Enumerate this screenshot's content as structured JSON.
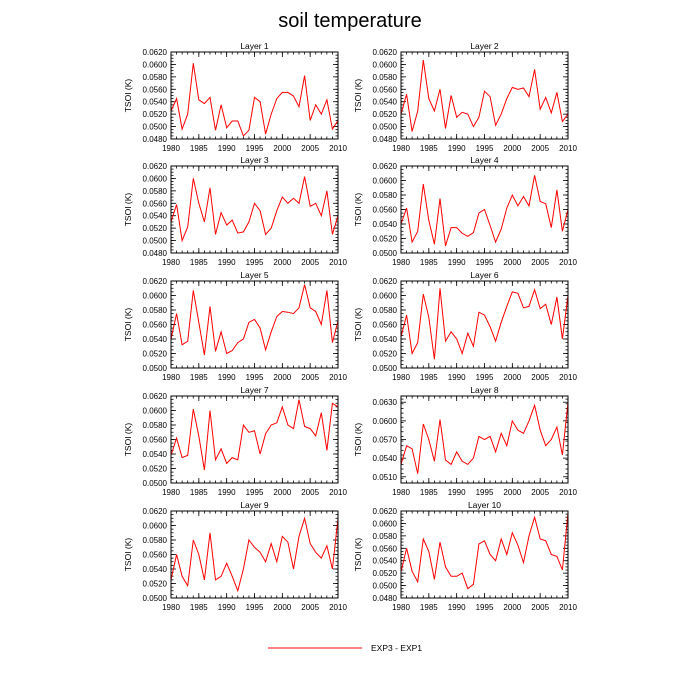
{
  "title": "soil temperature",
  "legend": {
    "label": "EXP3 - EXP1",
    "color": "#ff0000"
  },
  "chart_data": [
    {
      "type": "line",
      "title": "Layer 1",
      "xlabel": "",
      "ylabel": "TSOI  (K)",
      "xlim": [
        1980,
        2010
      ],
      "ylim": [
        0.048,
        0.062
      ],
      "xticks": [
        "1980",
        "1985",
        "1990",
        "1995",
        "2000",
        "2005",
        "2010"
      ],
      "yticks": [
        "0.0480",
        "0.0500",
        "0.0520",
        "0.0540",
        "0.0560",
        "0.0580",
        "0.0600",
        "0.0620"
      ],
      "x": [
        1980,
        1981,
        1982,
        1983,
        1984,
        1985,
        1986,
        1987,
        1988,
        1989,
        1990,
        1991,
        1992,
        1993,
        1994,
        1995,
        1996,
        1997,
        1998,
        1999,
        2000,
        2001,
        2002,
        2003,
        2004,
        2005,
        2006,
        2007,
        2008,
        2009,
        2010
      ],
      "series": [
        {
          "name": "EXP3 - EXP1",
          "values": [
            0.0525,
            0.0545,
            0.0496,
            0.052,
            0.0602,
            0.0543,
            0.0537,
            0.0547,
            0.0494,
            0.0535,
            0.0498,
            0.0509,
            0.0509,
            0.0485,
            0.0494,
            0.0547,
            0.054,
            0.0488,
            0.052,
            0.0545,
            0.0555,
            0.0555,
            0.0549,
            0.0532,
            0.0582,
            0.051,
            0.0535,
            0.052,
            0.0543,
            0.0496,
            0.051
          ]
        }
      ]
    },
    {
      "type": "line",
      "title": "Layer 2",
      "xlabel": "",
      "ylabel": "TSOI  (K)",
      "xlim": [
        1980,
        2010
      ],
      "ylim": [
        0.048,
        0.062
      ],
      "xticks": [
        "1980",
        "1985",
        "1990",
        "1995",
        "2000",
        "2005",
        "2010"
      ],
      "yticks": [
        "0.0480",
        "0.0500",
        "0.0520",
        "0.0540",
        "0.0560",
        "0.0580",
        "0.0600",
        "0.0620"
      ],
      "x": [
        1980,
        1981,
        1982,
        1983,
        1984,
        1985,
        1986,
        1987,
        1988,
        1989,
        1990,
        1991,
        1992,
        1993,
        1994,
        1995,
        1996,
        1997,
        1998,
        1999,
        2000,
        2001,
        2002,
        2003,
        2004,
        2005,
        2006,
        2007,
        2008,
        2009,
        2010
      ],
      "series": [
        {
          "name": "EXP3 - EXP1",
          "values": [
            0.052,
            0.0552,
            0.0492,
            0.0525,
            0.0607,
            0.0545,
            0.0525,
            0.056,
            0.0497,
            0.055,
            0.0515,
            0.0523,
            0.052,
            0.05,
            0.0515,
            0.0557,
            0.0548,
            0.0502,
            0.052,
            0.0545,
            0.0563,
            0.056,
            0.0562,
            0.0548,
            0.0592,
            0.0528,
            0.0547,
            0.0522,
            0.0555,
            0.0508,
            0.052
          ]
        }
      ]
    },
    {
      "type": "line",
      "title": "Layer 3",
      "xlabel": "",
      "ylabel": "TSOI  (K)",
      "xlim": [
        1980,
        2010
      ],
      "ylim": [
        0.048,
        0.062
      ],
      "xticks": [
        "1980",
        "1985",
        "1990",
        "1995",
        "2000",
        "2005",
        "2010"
      ],
      "yticks": [
        "0.0480",
        "0.0500",
        "0.0520",
        "0.0540",
        "0.0560",
        "0.0580",
        "0.0600",
        "0.0620"
      ],
      "x": [
        1980,
        1981,
        1982,
        1983,
        1984,
        1985,
        1986,
        1987,
        1988,
        1989,
        1990,
        1991,
        1992,
        1993,
        1994,
        1995,
        1996,
        1997,
        1998,
        1999,
        2000,
        2001,
        2002,
        2003,
        2004,
        2005,
        2006,
        2007,
        2008,
        2009,
        2010
      ],
      "series": [
        {
          "name": "EXP3 - EXP1",
          "values": [
            0.053,
            0.0558,
            0.05,
            0.0522,
            0.06,
            0.056,
            0.053,
            0.0585,
            0.051,
            0.0545,
            0.0525,
            0.0533,
            0.0512,
            0.0514,
            0.053,
            0.056,
            0.0548,
            0.051,
            0.052,
            0.0548,
            0.057,
            0.056,
            0.0568,
            0.056,
            0.0603,
            0.0555,
            0.056,
            0.054,
            0.058,
            0.051,
            0.054
          ]
        }
      ]
    },
    {
      "type": "line",
      "title": "Layer 4",
      "xlabel": "",
      "ylabel": "TSOI  (K)",
      "xlim": [
        1980,
        2010
      ],
      "ylim": [
        0.05,
        0.062
      ],
      "xticks": [
        "1980",
        "1985",
        "1990",
        "1995",
        "2000",
        "2005",
        "2010"
      ],
      "yticks": [
        "0.0500",
        "0.0520",
        "0.0540",
        "0.0560",
        "0.0580",
        "0.0600",
        "0.0620"
      ],
      "x": [
        1980,
        1981,
        1982,
        1983,
        1984,
        1985,
        1986,
        1987,
        1988,
        1989,
        1990,
        1991,
        1992,
        1993,
        1994,
        1995,
        1996,
        1997,
        1998,
        1999,
        2000,
        2001,
        2002,
        2003,
        2004,
        2005,
        2006,
        2007,
        2008,
        2009,
        2010
      ],
      "series": [
        {
          "name": "EXP3 - EXP1",
          "values": [
            0.054,
            0.0562,
            0.0515,
            0.053,
            0.0595,
            0.0545,
            0.0512,
            0.0575,
            0.051,
            0.0535,
            0.0535,
            0.0527,
            0.0523,
            0.0528,
            0.0555,
            0.056,
            0.0538,
            0.0515,
            0.0533,
            0.0562,
            0.058,
            0.0565,
            0.0578,
            0.0565,
            0.0607,
            0.0571,
            0.0568,
            0.0535,
            0.0587,
            0.053,
            0.056
          ]
        }
      ]
    },
    {
      "type": "line",
      "title": "Layer 5",
      "xlabel": "",
      "ylabel": "TSOI  (K)",
      "xlim": [
        1980,
        2010
      ],
      "ylim": [
        0.05,
        0.062
      ],
      "xticks": [
        "1980",
        "1985",
        "1990",
        "1995",
        "2000",
        "2005",
        "2010"
      ],
      "yticks": [
        "0.0500",
        "0.0520",
        "0.0540",
        "0.0560",
        "0.0580",
        "0.0600",
        "0.0620"
      ],
      "x": [
        1980,
        1981,
        1982,
        1983,
        1984,
        1985,
        1986,
        1987,
        1988,
        1989,
        1990,
        1991,
        1992,
        1993,
        1994,
        1995,
        1996,
        1997,
        1998,
        1999,
        2000,
        2001,
        2002,
        2003,
        2004,
        2005,
        2006,
        2007,
        2008,
        2009,
        2010
      ],
      "series": [
        {
          "name": "EXP3 - EXP1",
          "values": [
            0.054,
            0.0575,
            0.0532,
            0.0537,
            0.0607,
            0.0563,
            0.0518,
            0.0585,
            0.0523,
            0.055,
            0.052,
            0.0524,
            0.0535,
            0.054,
            0.0563,
            0.0567,
            0.0555,
            0.0525,
            0.055,
            0.0571,
            0.0578,
            0.0577,
            0.0575,
            0.0583,
            0.0615,
            0.0583,
            0.0578,
            0.056,
            0.0607,
            0.0535,
            0.0565
          ]
        }
      ]
    },
    {
      "type": "line",
      "title": "Layer 6",
      "xlabel": "",
      "ylabel": "TSOI  (K)",
      "xlim": [
        1980,
        2010
      ],
      "ylim": [
        0.05,
        0.062
      ],
      "xticks": [
        "1980",
        "1985",
        "1990",
        "1995",
        "2000",
        "2005",
        "2010"
      ],
      "yticks": [
        "0.0500",
        "0.0520",
        "0.0540",
        "0.0560",
        "0.0580",
        "0.0600",
        "0.0620"
      ],
      "x": [
        1980,
        1981,
        1982,
        1983,
        1984,
        1985,
        1986,
        1987,
        1988,
        1989,
        1990,
        1991,
        1992,
        1993,
        1994,
        1995,
        1996,
        1997,
        1998,
        1999,
        2000,
        2001,
        2002,
        2003,
        2004,
        2005,
        2006,
        2007,
        2008,
        2009,
        2010
      ],
      "series": [
        {
          "name": "EXP3 - EXP1",
          "values": [
            0.0543,
            0.0573,
            0.052,
            0.0535,
            0.0602,
            0.057,
            0.0512,
            0.061,
            0.0537,
            0.055,
            0.054,
            0.052,
            0.0548,
            0.053,
            0.0577,
            0.0573,
            0.0557,
            0.0537,
            0.0563,
            0.0585,
            0.0605,
            0.0603,
            0.0583,
            0.0585,
            0.0608,
            0.0582,
            0.0588,
            0.056,
            0.0598,
            0.054,
            0.06
          ]
        }
      ]
    },
    {
      "type": "line",
      "title": "Layer 7",
      "xlabel": "",
      "ylabel": "TSOI  (K)",
      "xlim": [
        1980,
        2010
      ],
      "ylim": [
        0.05,
        0.062
      ],
      "xticks": [
        "1980",
        "1985",
        "1990",
        "1995",
        "2000",
        "2005",
        "2010"
      ],
      "yticks": [
        "0.0500",
        "0.0520",
        "0.0540",
        "0.0560",
        "0.0580",
        "0.0600",
        "0.0620"
      ],
      "x": [
        1980,
        1981,
        1982,
        1983,
        1984,
        1985,
        1986,
        1987,
        1988,
        1989,
        1990,
        1991,
        1992,
        1993,
        1994,
        1995,
        1996,
        1997,
        1998,
        1999,
        2000,
        2001,
        2002,
        2003,
        2004,
        2005,
        2006,
        2007,
        2008,
        2009,
        2010
      ],
      "series": [
        {
          "name": "EXP3 - EXP1",
          "values": [
            0.0538,
            0.0562,
            0.0535,
            0.0538,
            0.0602,
            0.0565,
            0.0518,
            0.06,
            0.0532,
            0.0547,
            0.0527,
            0.0535,
            0.0532,
            0.058,
            0.057,
            0.0572,
            0.054,
            0.0568,
            0.058,
            0.0583,
            0.0605,
            0.058,
            0.0575,
            0.0615,
            0.0578,
            0.0575,
            0.0565,
            0.0597,
            0.0545,
            0.061,
            0.0605
          ]
        }
      ]
    },
    {
      "type": "line",
      "title": "Layer 8",
      "xlabel": "",
      "ylabel": "TSOI  (K)",
      "xlim": [
        1980,
        2010
      ],
      "ylim": [
        0.05,
        0.064
      ],
      "xticks": [
        "1980",
        "1985",
        "1990",
        "1995",
        "2000",
        "2005",
        "2010"
      ],
      "yticks": [
        "0.0510",
        "0.0540",
        "0.0570",
        "0.0600",
        "0.0630"
      ],
      "x": [
        1980,
        1981,
        1982,
        1983,
        1984,
        1985,
        1986,
        1987,
        1988,
        1989,
        1990,
        1991,
        1992,
        1993,
        1994,
        1995,
        1996,
        1997,
        1998,
        1999,
        2000,
        2001,
        2002,
        2003,
        2004,
        2005,
        2006,
        2007,
        2008,
        2009,
        2010
      ],
      "series": [
        {
          "name": "EXP3 - EXP1",
          "values": [
            0.053,
            0.056,
            0.0555,
            0.0515,
            0.0595,
            0.057,
            0.0535,
            0.0602,
            0.0537,
            0.053,
            0.055,
            0.0535,
            0.053,
            0.054,
            0.0575,
            0.057,
            0.0575,
            0.055,
            0.058,
            0.056,
            0.06,
            0.0585,
            0.058,
            0.06,
            0.0625,
            0.0585,
            0.056,
            0.057,
            0.059,
            0.0545,
            0.063
          ]
        }
      ]
    },
    {
      "type": "line",
      "title": "Layer 9",
      "xlabel": "",
      "ylabel": "TSOI  (K)",
      "xlim": [
        1980,
        2010
      ],
      "ylim": [
        0.05,
        0.062
      ],
      "xticks": [
        "1980",
        "1985",
        "1990",
        "1995",
        "2000",
        "2005",
        "2010"
      ],
      "yticks": [
        "0.0500",
        "0.0520",
        "0.0540",
        "0.0560",
        "0.0580",
        "0.0600",
        "0.0620"
      ],
      "x": [
        1980,
        1981,
        1982,
        1983,
        1984,
        1985,
        1986,
        1987,
        1988,
        1989,
        1990,
        1991,
        1992,
        1993,
        1994,
        1995,
        1996,
        1997,
        1998,
        1999,
        2000,
        2001,
        2002,
        2003,
        2004,
        2005,
        2006,
        2007,
        2008,
        2009,
        2010
      ],
      "series": [
        {
          "name": "EXP3 - EXP1",
          "values": [
            0.0525,
            0.056,
            0.053,
            0.0517,
            0.058,
            0.056,
            0.0525,
            0.059,
            0.0525,
            0.053,
            0.0548,
            0.053,
            0.051,
            0.054,
            0.058,
            0.057,
            0.0563,
            0.055,
            0.0575,
            0.055,
            0.0585,
            0.0577,
            0.054,
            0.0585,
            0.061,
            0.0575,
            0.0563,
            0.0555,
            0.0572,
            0.054,
            0.061
          ]
        }
      ]
    },
    {
      "type": "line",
      "title": "Layer 10",
      "xlabel": "",
      "ylabel": "TSOI  (K)",
      "xlim": [
        1980,
        2010
      ],
      "ylim": [
        0.048,
        0.062
      ],
      "xticks": [
        "1980",
        "1985",
        "1990",
        "1995",
        "2000",
        "2005",
        "2010"
      ],
      "yticks": [
        "0.0480",
        "0.0500",
        "0.0520",
        "0.0540",
        "0.0560",
        "0.0580",
        "0.0600",
        "0.0620"
      ],
      "x": [
        1980,
        1981,
        1982,
        1983,
        1984,
        1985,
        1986,
        1987,
        1988,
        1989,
        1990,
        1991,
        1992,
        1993,
        1994,
        1995,
        1996,
        1997,
        1998,
        1999,
        2000,
        2001,
        2002,
        2003,
        2004,
        2005,
        2006,
        2007,
        2008,
        2009,
        2010
      ],
      "series": [
        {
          "name": "EXP3 - EXP1",
          "values": [
            0.0522,
            0.056,
            0.0523,
            0.0506,
            0.0575,
            0.0555,
            0.051,
            0.057,
            0.053,
            0.0515,
            0.0515,
            0.052,
            0.0495,
            0.0502,
            0.0567,
            0.0572,
            0.055,
            0.054,
            0.0575,
            0.055,
            0.0585,
            0.0565,
            0.0537,
            0.058,
            0.061,
            0.0575,
            0.0572,
            0.055,
            0.0547,
            0.0525,
            0.0617
          ]
        }
      ]
    }
  ]
}
